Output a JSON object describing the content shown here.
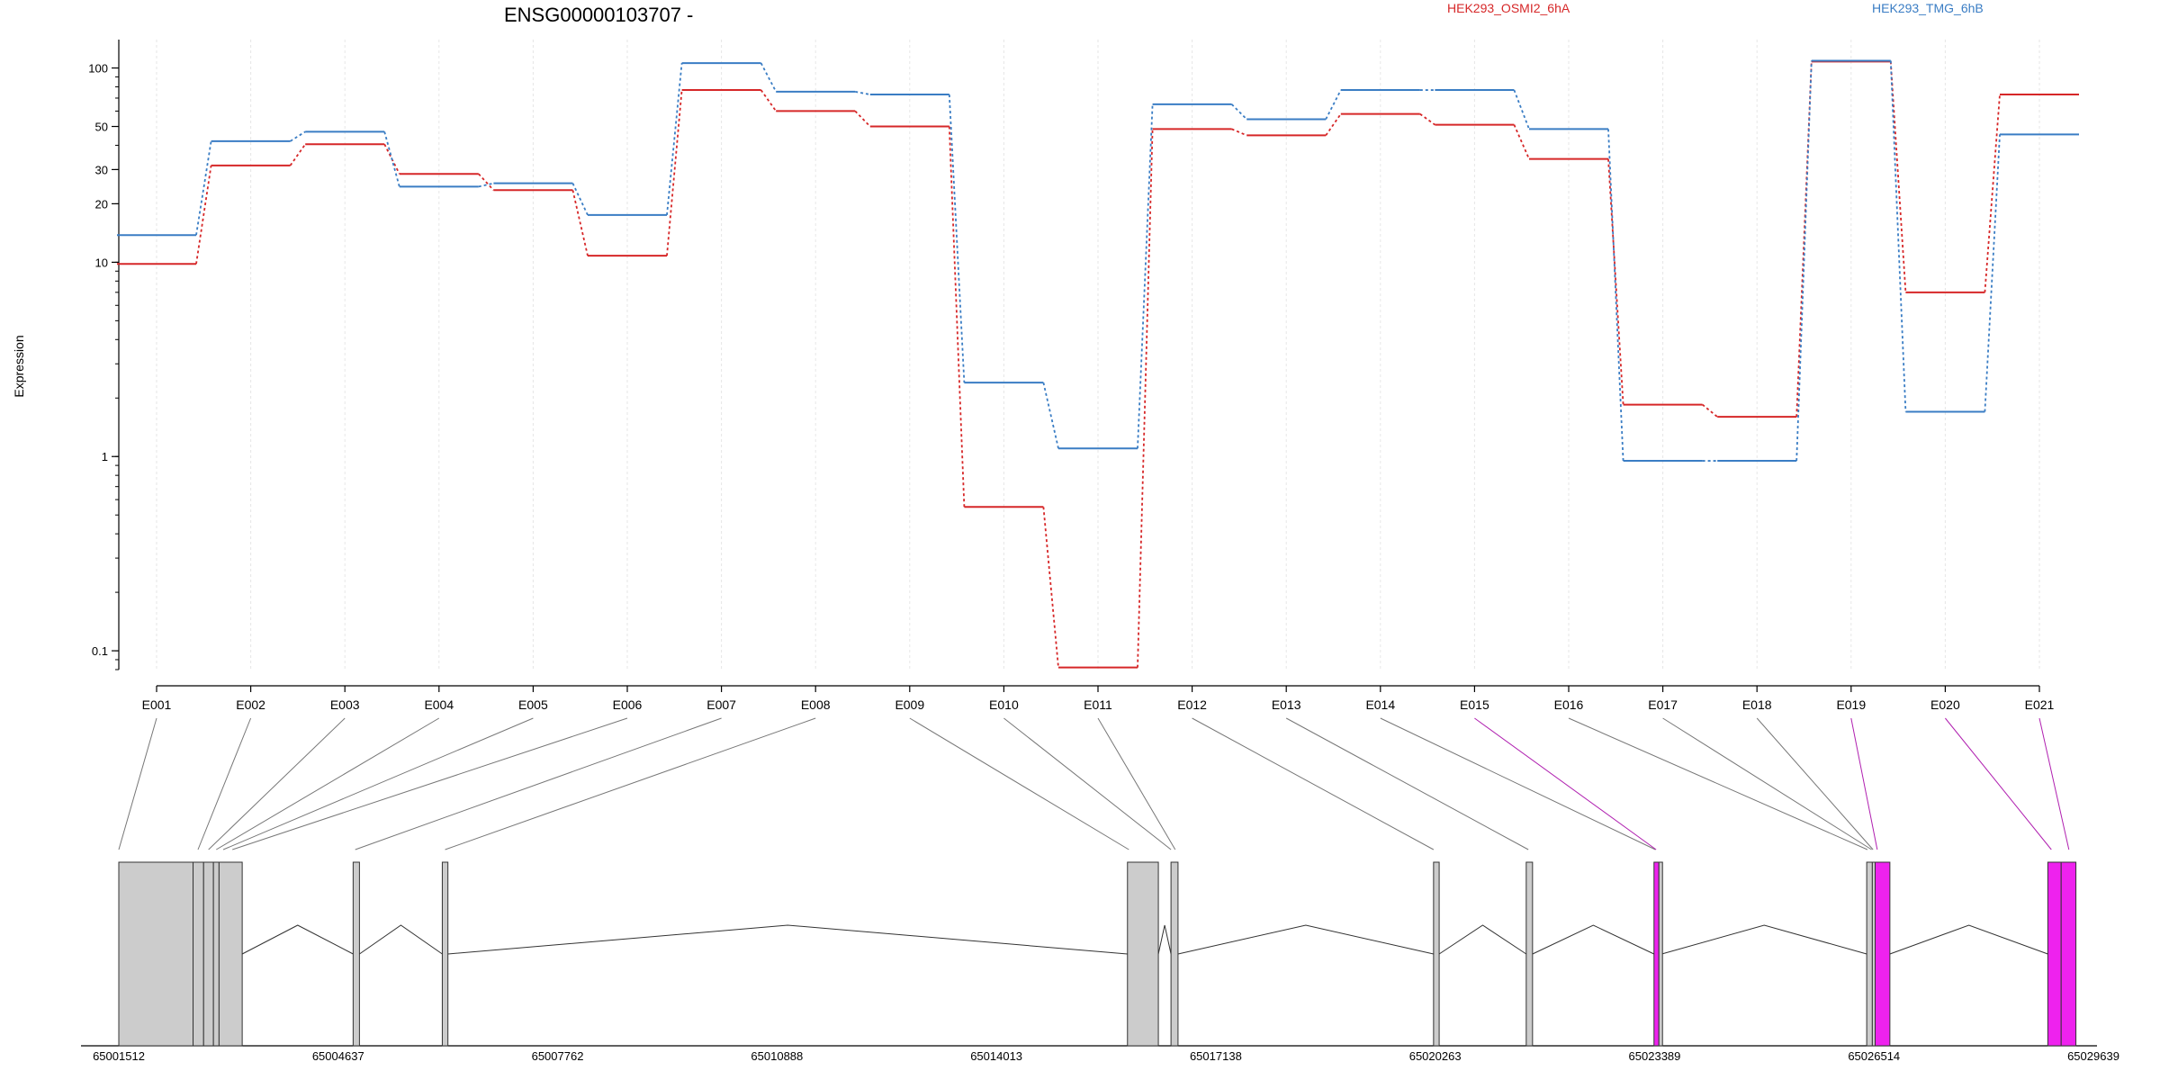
{
  "chart_data": {
    "type": "line",
    "title": "ENSG00000103707 -",
    "ylabel": "Expression",
    "yscale": "log",
    "ylim": [
      0.08,
      140
    ],
    "y_ticks": [
      0.1,
      1,
      10,
      20,
      30,
      50,
      100
    ],
    "y_tick_labels": [
      "0.1",
      "1",
      "10",
      "20",
      "30",
      "50",
      "100"
    ],
    "categories": [
      "E001",
      "E002",
      "E003",
      "E004",
      "E005",
      "E006",
      "E007",
      "E008",
      "E009",
      "E010",
      "E011",
      "E012",
      "E013",
      "E014",
      "E015",
      "E016",
      "E017",
      "E018",
      "E019",
      "E020",
      "E021"
    ],
    "series": [
      {
        "name": "HEK293_OSMI2_6hA",
        "color": "#d62728",
        "values": [
          9.8,
          31.5,
          40.5,
          28.5,
          23.5,
          10.8,
          77,
          60,
          50,
          0.55,
          0.082,
          48.5,
          45,
          58,
          51,
          34,
          1.85,
          1.6,
          108,
          7,
          73
        ]
      },
      {
        "name": "HEK293_TMG_6hB",
        "color": "#3a7dc4",
        "values": [
          13.8,
          42,
          47,
          24.5,
          25.5,
          17.5,
          106,
          75.5,
          73,
          2.4,
          1.1,
          65,
          54.5,
          77,
          77,
          48.5,
          0.95,
          0.95,
          109,
          1.7,
          45.5
        ]
      }
    ],
    "grid": true,
    "gene_model": {
      "coordinate_labels": [
        "65001512",
        "65004637",
        "65007762",
        "65010888",
        "65014013",
        "65017138",
        "65020263",
        "65023389",
        "65026514",
        "65029639"
      ],
      "coord_min": 65001512,
      "coord_max": 65029639,
      "exon_color": "#cccccc",
      "highlight_color": "#ee22ee",
      "exons": [
        {
          "start": 65001512,
          "end": 65002570,
          "hl": false
        },
        {
          "start": 65002570,
          "end": 65002720,
          "hl": false
        },
        {
          "start": 65002720,
          "end": 65002860,
          "hl": false
        },
        {
          "start": 65002860,
          "end": 65002940,
          "hl": false
        },
        {
          "start": 65002940,
          "end": 65003270,
          "hl": false
        },
        {
          "start": 65004850,
          "end": 65004940,
          "hl": false
        },
        {
          "start": 65006120,
          "end": 65006200,
          "hl": false
        },
        {
          "start": 65015880,
          "end": 65016320,
          "hl": false
        },
        {
          "start": 65016500,
          "end": 65016600,
          "hl": false
        },
        {
          "start": 65020240,
          "end": 65020320,
          "hl": false
        },
        {
          "start": 65021560,
          "end": 65021650,
          "hl": false
        },
        {
          "start": 65023380,
          "end": 65023450,
          "hl": true
        },
        {
          "start": 65023450,
          "end": 65023490,
          "hl": false
        },
        {
          "start": 65026410,
          "end": 65026490,
          "hl": false
        },
        {
          "start": 65026490,
          "end": 65026530,
          "hl": false
        },
        {
          "start": 65026530,
          "end": 65026740,
          "hl": true
        },
        {
          "start": 65028990,
          "end": 65029180,
          "hl": true
        },
        {
          "start": 65029180,
          "end": 65029390,
          "hl": true
        }
      ],
      "exon_map": [
        65001512,
        65002640,
        65002790,
        65002900,
        65003000,
        65003130,
        65004880,
        65006160,
        65015900,
        65016500,
        65016560,
        65020240,
        65021590,
        65023400,
        65023410,
        65026420,
        65026480,
        65026500,
        65026560,
        65029040,
        65029290
      ],
      "exon_map_highlight": [
        false,
        false,
        false,
        false,
        false,
        false,
        false,
        false,
        false,
        false,
        false,
        false,
        false,
        false,
        true,
        false,
        false,
        false,
        true,
        true,
        true
      ]
    }
  }
}
